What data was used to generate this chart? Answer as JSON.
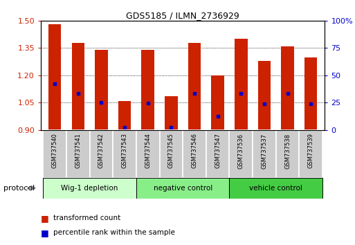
{
  "title": "GDS5185 / ILMN_2736929",
  "samples": [
    "GSM737540",
    "GSM737541",
    "GSM737542",
    "GSM737543",
    "GSM737544",
    "GSM737545",
    "GSM737546",
    "GSM737547",
    "GSM737536",
    "GSM737537",
    "GSM737538",
    "GSM737539"
  ],
  "bar_values": [
    1.48,
    1.38,
    1.34,
    1.06,
    1.34,
    1.085,
    1.38,
    1.2,
    1.4,
    1.28,
    1.36,
    1.3
  ],
  "blue_dot_positions": [
    1.155,
    1.1,
    1.052,
    0.915,
    1.048,
    0.915,
    1.1,
    0.975,
    1.1,
    1.042,
    1.1,
    1.042
  ],
  "groups": [
    {
      "label": "Wig-1 depletion",
      "start": 0,
      "end": 4,
      "color": "#ccffcc"
    },
    {
      "label": "negative control",
      "start": 4,
      "end": 8,
      "color": "#88ee88"
    },
    {
      "label": "vehicle control",
      "start": 8,
      "end": 12,
      "color": "#44cc44"
    }
  ],
  "ylim_left": [
    0.9,
    1.5
  ],
  "ylim_right": [
    0,
    100
  ],
  "yticks_left": [
    0.9,
    1.05,
    1.2,
    1.35,
    1.5
  ],
  "yticks_right": [
    0,
    25,
    50,
    75,
    100
  ],
  "bar_color": "#cc2200",
  "dot_color": "#0000cc",
  "bar_width": 0.55,
  "left_label_color": "#cc2200",
  "right_label_color": "#0000cc",
  "legend_items": [
    "transformed count",
    "percentile rank within the sample"
  ],
  "protocol_label": "protocol",
  "sample_box_color": "#cccccc",
  "baseline": 0.9
}
